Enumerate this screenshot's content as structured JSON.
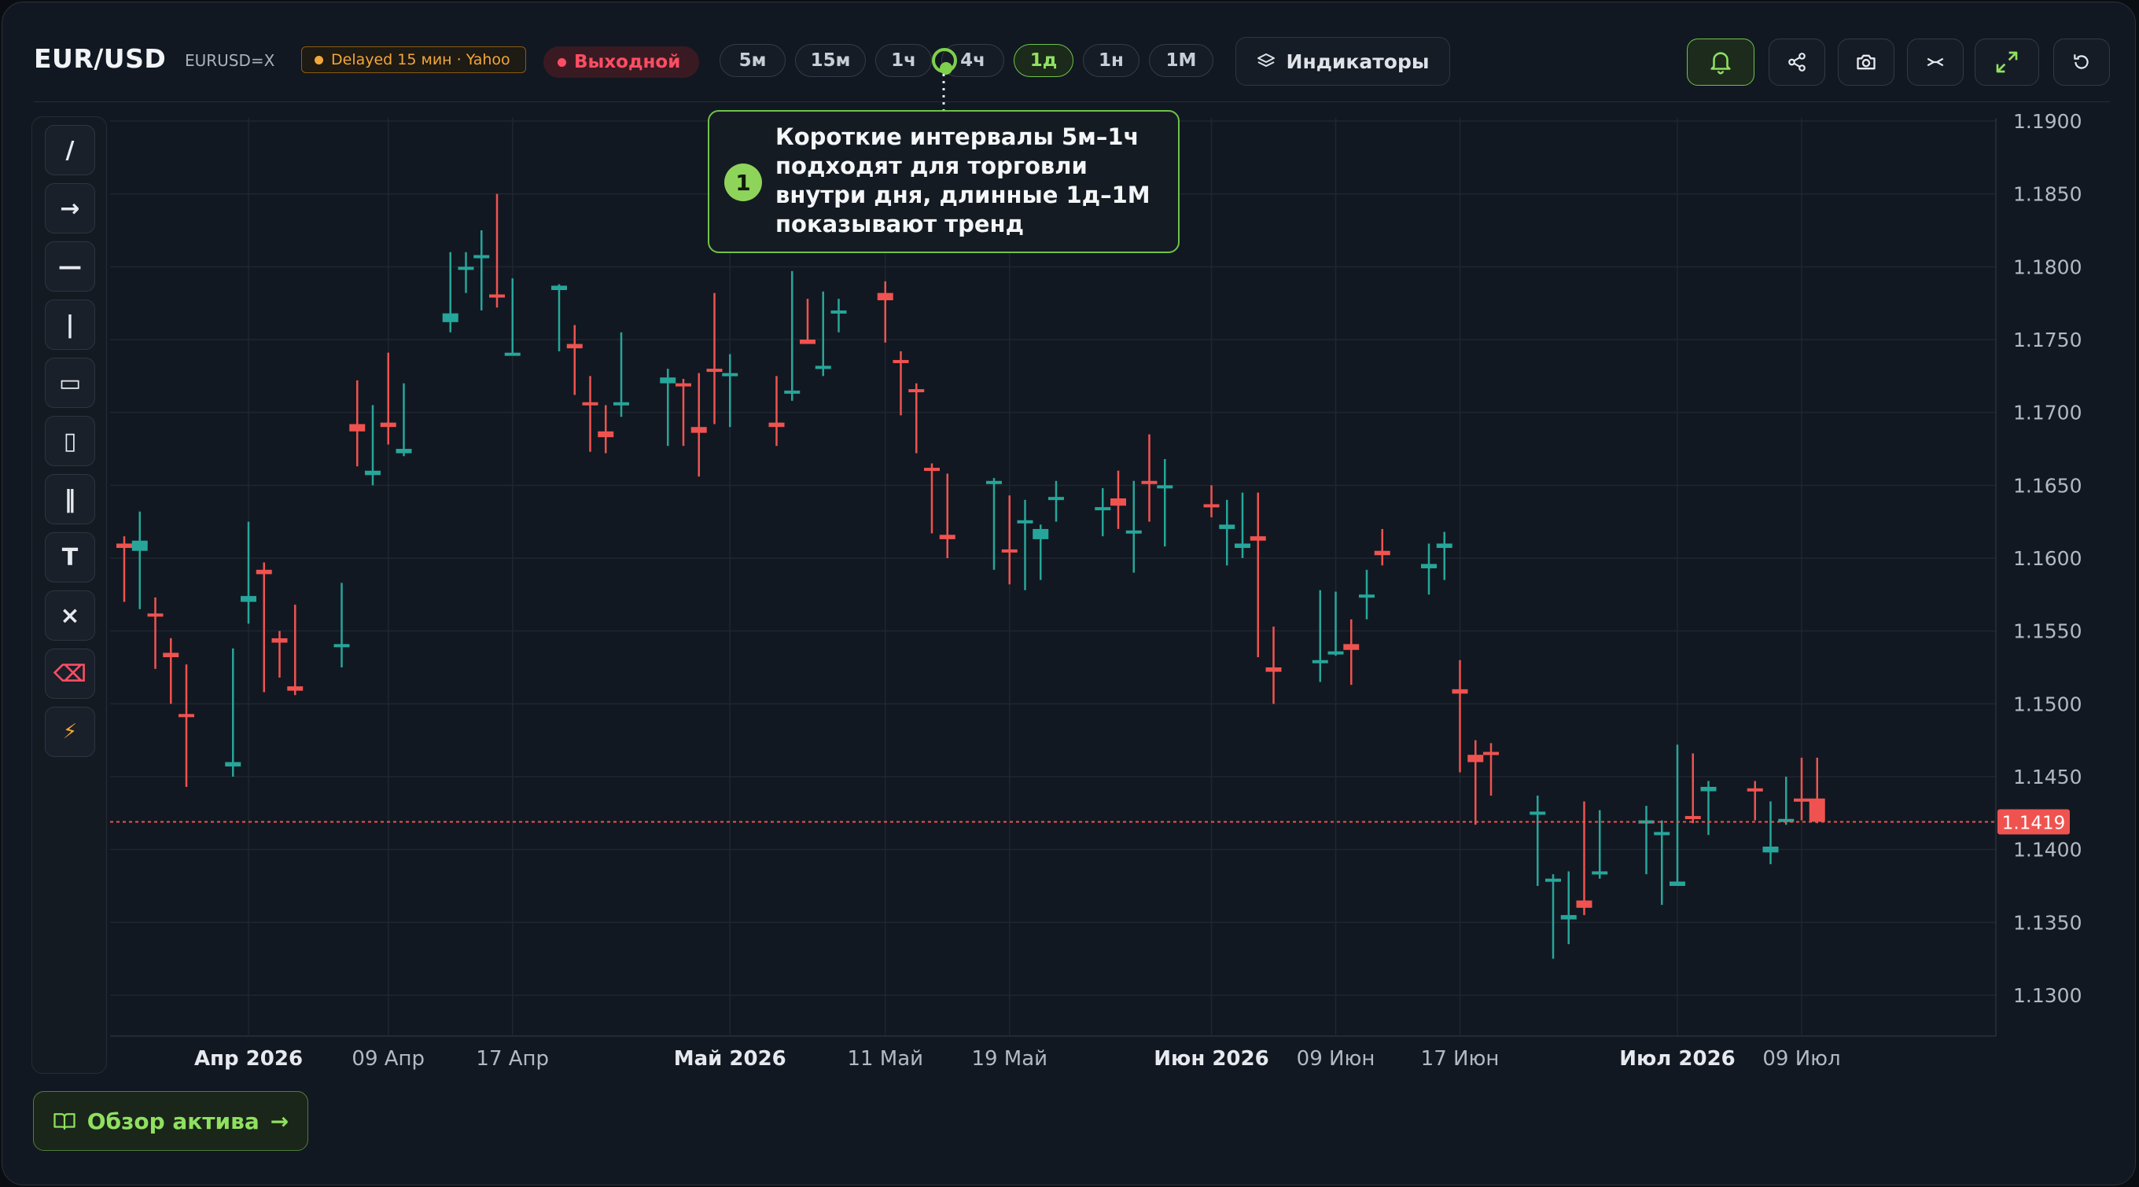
{
  "header": {
    "symbol": "EUR/USD",
    "ticker": "EURUSD=X",
    "delay_badge": "Delayed 15 мин · Yahoo",
    "status_badge": "Выходной",
    "intervals": [
      "5м",
      "15м",
      "1ч",
      "4ч",
      "1д",
      "1н",
      "1М"
    ],
    "active_interval": "1д",
    "indicators_label": "Индикаторы",
    "toolbar_icons": [
      "bell-icon",
      "share-icon",
      "camera-icon",
      "compare-icon",
      "fullscreen-icon",
      "reset-icon"
    ]
  },
  "drawing_tools": [
    {
      "name": "trend-line",
      "glyph": "/"
    },
    {
      "name": "ray",
      "glyph": "→"
    },
    {
      "name": "horizontal-line",
      "glyph": "—"
    },
    {
      "name": "vertical-line",
      "glyph": "|"
    },
    {
      "name": "rectangle",
      "glyph": "▭"
    },
    {
      "name": "long-rectangle",
      "glyph": "▯"
    },
    {
      "name": "parallel-channel",
      "glyph": "‖"
    },
    {
      "name": "text",
      "glyph": "T"
    },
    {
      "name": "clear",
      "glyph": "×"
    },
    {
      "name": "erase",
      "glyph": "⌫"
    },
    {
      "name": "quick",
      "glyph": "⚡"
    }
  ],
  "tooltip": {
    "step": "1",
    "text": "Короткие интервалы 5м–1ч подходят для торговли внутри дня, длинные 1д–1М показывают тренд"
  },
  "footer": {
    "overview_label": "Обзор актива",
    "arrow": "→"
  },
  "colors": {
    "up": "#26a69a",
    "down": "#ef5350",
    "accent": "#8fe060",
    "background": "#121821"
  },
  "chart_data": {
    "type": "candlestick",
    "y_ticks": [
      "1.1900",
      "1.1850",
      "1.1800",
      "1.1750",
      "1.1700",
      "1.1650",
      "1.1600",
      "1.1550",
      "1.1500",
      "1.1450",
      "1.1400",
      "1.1350",
      "1.1300"
    ],
    "x_ticks": [
      {
        "date": "2026-03-31",
        "label": "Апр 2026",
        "major": true
      },
      {
        "date": "2026-04-09",
        "label": "09 Апр",
        "major": false
      },
      {
        "date": "2026-04-17",
        "label": "17 Апр",
        "major": false
      },
      {
        "date": "2026-05-01",
        "label": "Май 2026",
        "major": true
      },
      {
        "date": "2026-05-11",
        "label": "11 Май",
        "major": false
      },
      {
        "date": "2026-05-19",
        "label": "19 Май",
        "major": false
      },
      {
        "date": "2026-06-01",
        "label": "Июн 2026",
        "major": true
      },
      {
        "date": "2026-06-09",
        "label": "09 Июн",
        "major": false
      },
      {
        "date": "2026-06-17",
        "label": "17 Июн",
        "major": false
      },
      {
        "date": "2026-07-01",
        "label": "Июл 2026",
        "major": true
      },
      {
        "date": "2026-07-09",
        "label": "09 Июл",
        "major": false
      }
    ],
    "ylim": [
      1.128,
      1.19
    ],
    "last_price": "1.1419",
    "last_price_value": 1.1419,
    "candles": [
      {
        "date": "2026-03-23",
        "o": 1.161,
        "h": 1.1615,
        "l": 1.157,
        "c": 1.1607
      },
      {
        "date": "2026-03-24",
        "o": 1.1605,
        "h": 1.1632,
        "l": 1.1565,
        "c": 1.1612
      },
      {
        "date": "2026-03-25",
        "o": 1.1562,
        "h": 1.1573,
        "l": 1.1524,
        "c": 1.156
      },
      {
        "date": "2026-03-26",
        "o": 1.1535,
        "h": 1.1545,
        "l": 1.15,
        "c": 1.1532
      },
      {
        "date": "2026-03-27",
        "o": 1.1493,
        "h": 1.1527,
        "l": 1.1443,
        "c": 1.1492
      },
      {
        "date": "2026-03-30",
        "o": 1.1457,
        "h": 1.1538,
        "l": 1.145,
        "c": 1.146
      },
      {
        "date": "2026-03-31",
        "o": 1.157,
        "h": 1.1625,
        "l": 1.1555,
        "c": 1.1574
      },
      {
        "date": "2026-04-01",
        "o": 1.1592,
        "h": 1.1597,
        "l": 1.1508,
        "c": 1.1589
      },
      {
        "date": "2026-04-02",
        "o": 1.1545,
        "h": 1.155,
        "l": 1.1518,
        "c": 1.1542
      },
      {
        "date": "2026-04-03",
        "o": 1.1512,
        "h": 1.1568,
        "l": 1.1506,
        "c": 1.1509
      },
      {
        "date": "2026-04-06",
        "o": 1.154,
        "h": 1.1583,
        "l": 1.1525,
        "c": 1.1541
      },
      {
        "date": "2026-04-07",
        "o": 1.1692,
        "h": 1.1722,
        "l": 1.1663,
        "c": 1.1687
      },
      {
        "date": "2026-04-08",
        "o": 1.1657,
        "h": 1.1705,
        "l": 1.165,
        "c": 1.166
      },
      {
        "date": "2026-04-09",
        "o": 1.1693,
        "h": 1.1741,
        "l": 1.1678,
        "c": 1.169
      },
      {
        "date": "2026-04-10",
        "o": 1.1672,
        "h": 1.172,
        "l": 1.167,
        "c": 1.1675
      },
      {
        "date": "2026-04-13",
        "o": 1.1762,
        "h": 1.181,
        "l": 1.1755,
        "c": 1.1768
      },
      {
        "date": "2026-04-14",
        "o": 1.1798,
        "h": 1.181,
        "l": 1.1782,
        "c": 1.18
      },
      {
        "date": "2026-04-15",
        "o": 1.1806,
        "h": 1.1825,
        "l": 1.177,
        "c": 1.1808
      },
      {
        "date": "2026-04-16",
        "o": 1.1781,
        "h": 1.185,
        "l": 1.1772,
        "c": 1.1779
      },
      {
        "date": "2026-04-17",
        "o": 1.174,
        "h": 1.1792,
        "l": 1.174,
        "c": 1.1741
      },
      {
        "date": "2026-04-20",
        "o": 1.1784,
        "h": 1.1788,
        "l": 1.1742,
        "c": 1.1787
      },
      {
        "date": "2026-04-21",
        "o": 1.1747,
        "h": 1.176,
        "l": 1.1712,
        "c": 1.1744
      },
      {
        "date": "2026-04-22",
        "o": 1.1707,
        "h": 1.1725,
        "l": 1.1673,
        "c": 1.1705
      },
      {
        "date": "2026-04-23",
        "o": 1.1687,
        "h": 1.1705,
        "l": 1.1672,
        "c": 1.1683
      },
      {
        "date": "2026-04-24",
        "o": 1.1705,
        "h": 1.1755,
        "l": 1.1697,
        "c": 1.1707
      },
      {
        "date": "2026-04-27",
        "o": 1.172,
        "h": 1.173,
        "l": 1.1677,
        "c": 1.1724
      },
      {
        "date": "2026-04-28",
        "o": 1.172,
        "h": 1.1723,
        "l": 1.1677,
        "c": 1.1718
      },
      {
        "date": "2026-04-29",
        "o": 1.169,
        "h": 1.1727,
        "l": 1.1656,
        "c": 1.1686
      },
      {
        "date": "2026-04-30",
        "o": 1.173,
        "h": 1.1782,
        "l": 1.1692,
        "c": 1.1728
      },
      {
        "date": "2026-05-01",
        "o": 1.1725,
        "h": 1.174,
        "l": 1.169,
        "c": 1.1727
      },
      {
        "date": "2026-05-04",
        "o": 1.1693,
        "h": 1.1725,
        "l": 1.1677,
        "c": 1.169
      },
      {
        "date": "2026-05-05",
        "o": 1.1713,
        "h": 1.1797,
        "l": 1.1708,
        "c": 1.1715
      },
      {
        "date": "2026-05-06",
        "o": 1.175,
        "h": 1.1778,
        "l": 1.1748,
        "c": 1.1747
      },
      {
        "date": "2026-05-07",
        "o": 1.1731,
        "h": 1.1783,
        "l": 1.1725,
        "c": 1.1732
      },
      {
        "date": "2026-05-08",
        "o": 1.1768,
        "h": 1.1778,
        "l": 1.1755,
        "c": 1.177
      },
      {
        "date": "2026-05-11",
        "o": 1.1782,
        "h": 1.179,
        "l": 1.1748,
        "c": 1.1777
      },
      {
        "date": "2026-05-12",
        "o": 1.1736,
        "h": 1.1742,
        "l": 1.1698,
        "c": 1.1734
      },
      {
        "date": "2026-05-13",
        "o": 1.1716,
        "h": 1.172,
        "l": 1.1672,
        "c": 1.1714
      },
      {
        "date": "2026-05-14",
        "o": 1.1662,
        "h": 1.1665,
        "l": 1.1617,
        "c": 1.166
      },
      {
        "date": "2026-05-15",
        "o": 1.1616,
        "h": 1.1658,
        "l": 1.16,
        "c": 1.1613
      },
      {
        "date": "2026-05-18",
        "o": 1.1652,
        "h": 1.1655,
        "l": 1.1592,
        "c": 1.1653
      },
      {
        "date": "2026-05-19",
        "o": 1.1606,
        "h": 1.1643,
        "l": 1.1582,
        "c": 1.1605
      },
      {
        "date": "2026-05-20",
        "o": 1.1624,
        "h": 1.164,
        "l": 1.1578,
        "c": 1.1626
      },
      {
        "date": "2026-05-21",
        "o": 1.1613,
        "h": 1.1623,
        "l": 1.1585,
        "c": 1.162
      },
      {
        "date": "2026-05-22",
        "o": 1.164,
        "h": 1.1653,
        "l": 1.1625,
        "c": 1.1642
      },
      {
        "date": "2026-05-25",
        "o": 1.1634,
        "h": 1.1648,
        "l": 1.1615,
        "c": 1.1635
      },
      {
        "date": "2026-05-26",
        "o": 1.1641,
        "h": 1.166,
        "l": 1.162,
        "c": 1.1636
      },
      {
        "date": "2026-05-27",
        "o": 1.1617,
        "h": 1.1653,
        "l": 1.159,
        "c": 1.1619
      },
      {
        "date": "2026-05-28",
        "o": 1.1653,
        "h": 1.1685,
        "l": 1.1625,
        "c": 1.1652
      },
      {
        "date": "2026-05-29",
        "o": 1.1648,
        "h": 1.1668,
        "l": 1.1608,
        "c": 1.165
      },
      {
        "date": "2026-06-01",
        "o": 1.1637,
        "h": 1.165,
        "l": 1.1628,
        "c": 1.1635
      },
      {
        "date": "2026-06-02",
        "o": 1.162,
        "h": 1.164,
        "l": 1.1595,
        "c": 1.1623
      },
      {
        "date": "2026-06-03",
        "o": 1.1607,
        "h": 1.1645,
        "l": 1.16,
        "c": 1.161
      },
      {
        "date": "2026-06-04",
        "o": 1.1615,
        "h": 1.1645,
        "l": 1.1532,
        "c": 1.1612
      },
      {
        "date": "2026-06-05",
        "o": 1.1525,
        "h": 1.1553,
        "l": 1.15,
        "c": 1.1522
      },
      {
        "date": "2026-06-08",
        "o": 1.1528,
        "h": 1.1578,
        "l": 1.1515,
        "c": 1.153
      },
      {
        "date": "2026-06-09",
        "o": 1.1535,
        "h": 1.1577,
        "l": 1.1533,
        "c": 1.1536
      },
      {
        "date": "2026-06-10",
        "o": 1.1541,
        "h": 1.1558,
        "l": 1.1513,
        "c": 1.1537
      },
      {
        "date": "2026-06-11",
        "o": 1.1573,
        "h": 1.1592,
        "l": 1.1558,
        "c": 1.1575
      },
      {
        "date": "2026-06-12",
        "o": 1.1605,
        "h": 1.162,
        "l": 1.1595,
        "c": 1.1602
      },
      {
        "date": "2026-06-15",
        "o": 1.1593,
        "h": 1.161,
        "l": 1.1575,
        "c": 1.1596
      },
      {
        "date": "2026-06-16",
        "o": 1.1607,
        "h": 1.1618,
        "l": 1.1585,
        "c": 1.161
      },
      {
        "date": "2026-06-17",
        "o": 1.151,
        "h": 1.153,
        "l": 1.1453,
        "c": 1.1507
      },
      {
        "date": "2026-06-18",
        "o": 1.1465,
        "h": 1.1475,
        "l": 1.1417,
        "c": 1.146
      },
      {
        "date": "2026-06-19",
        "o": 1.1467,
        "h": 1.1473,
        "l": 1.1437,
        "c": 1.1465
      },
      {
        "date": "2026-06-22",
        "o": 1.1424,
        "h": 1.1437,
        "l": 1.1375,
        "c": 1.1426
      },
      {
        "date": "2026-06-23",
        "o": 1.1378,
        "h": 1.1383,
        "l": 1.1325,
        "c": 1.138
      },
      {
        "date": "2026-06-24",
        "o": 1.1352,
        "h": 1.1385,
        "l": 1.1335,
        "c": 1.1355
      },
      {
        "date": "2026-06-25",
        "o": 1.1365,
        "h": 1.1433,
        "l": 1.1355,
        "c": 1.136
      },
      {
        "date": "2026-06-26",
        "o": 1.1383,
        "h": 1.1427,
        "l": 1.138,
        "c": 1.1385
      },
      {
        "date": "2026-06-29",
        "o": 1.1418,
        "h": 1.143,
        "l": 1.1383,
        "c": 1.142
      },
      {
        "date": "2026-06-30",
        "o": 1.141,
        "h": 1.142,
        "l": 1.1362,
        "c": 1.1412
      },
      {
        "date": "2026-07-01",
        "o": 1.1375,
        "h": 1.1472,
        "l": 1.1375,
        "c": 1.1378
      },
      {
        "date": "2026-07-02",
        "o": 1.1423,
        "h": 1.1466,
        "l": 1.1418,
        "c": 1.1422
      },
      {
        "date": "2026-07-03",
        "o": 1.144,
        "h": 1.1447,
        "l": 1.141,
        "c": 1.1443
      },
      {
        "date": "2026-07-06",
        "o": 1.1442,
        "h": 1.1447,
        "l": 1.142,
        "c": 1.144
      },
      {
        "date": "2026-07-07",
        "o": 1.1398,
        "h": 1.1433,
        "l": 1.139,
        "c": 1.1402
      },
      {
        "date": "2026-07-08",
        "o": 1.142,
        "h": 1.145,
        "l": 1.1417,
        "c": 1.1421
      },
      {
        "date": "2026-07-09",
        "o": 1.1435,
        "h": 1.1463,
        "l": 1.142,
        "c": 1.1433
      },
      {
        "date": "2026-07-10",
        "o": 1.1435,
        "h": 1.1463,
        "l": 1.1418,
        "c": 1.1419
      }
    ]
  }
}
